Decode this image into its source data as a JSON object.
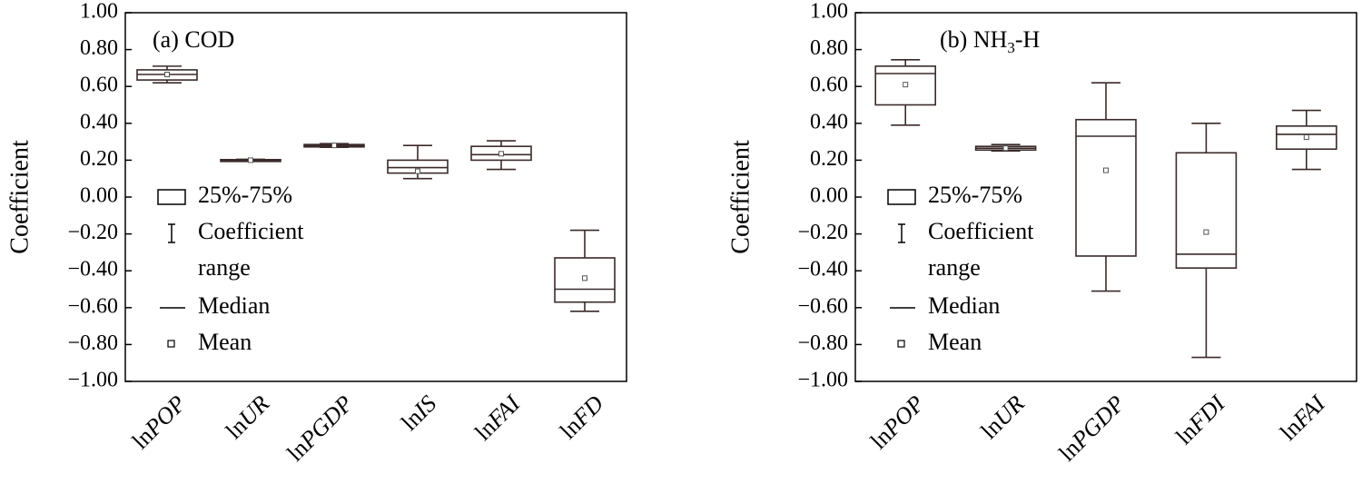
{
  "chart_data": [
    {
      "type": "box",
      "panel_label": "(a) COD",
      "ylabel": "Coefficient",
      "ylim": [
        -1.0,
        1.0
      ],
      "yticks": [
        "1.00",
        "0.80",
        "0.60",
        "0.40",
        "0.20",
        "0.00",
        "−0.20",
        "−0.40",
        "−0.60",
        "−0.80",
        "−1.00"
      ],
      "categories": [
        {
          "prefix": "ln",
          "italic": "POP"
        },
        {
          "prefix": "ln",
          "italic": "UR"
        },
        {
          "prefix": "ln",
          "italic": "PGDP"
        },
        {
          "prefix": "ln",
          "italic": "IS"
        },
        {
          "prefix": "ln",
          "italic": "FAI"
        },
        {
          "prefix": "ln",
          "italic": "FD"
        }
      ],
      "boxes": [
        {
          "min": 0.62,
          "q1": 0.635,
          "median": 0.665,
          "q3": 0.69,
          "max": 0.71,
          "mean": 0.665
        },
        {
          "min": 0.195,
          "q1": 0.197,
          "median": 0.2,
          "q3": 0.203,
          "max": 0.205,
          "mean": 0.2
        },
        {
          "min": 0.27,
          "q1": 0.272,
          "median": 0.28,
          "q3": 0.285,
          "max": 0.29,
          "mean": 0.28
        },
        {
          "min": 0.1,
          "q1": 0.13,
          "median": 0.16,
          "q3": 0.2,
          "max": 0.28,
          "mean": 0.14
        },
        {
          "min": 0.15,
          "q1": 0.2,
          "median": 0.23,
          "q3": 0.275,
          "max": 0.305,
          "mean": 0.235
        },
        {
          "min": -0.62,
          "q1": -0.57,
          "median": -0.5,
          "q3": -0.33,
          "max": -0.18,
          "mean": -0.44
        }
      ],
      "legend": {
        "box": "25%-75%",
        "range_line1": "Coefficient",
        "range_line2": "range",
        "median": "Median",
        "mean": "Mean"
      }
    },
    {
      "type": "box",
      "panel_label_main": "(b) NH",
      "panel_label_sub": "3",
      "panel_label_tail": "-H",
      "ylabel": "Coefficient",
      "ylim": [
        -1.0,
        1.0
      ],
      "yticks": [
        "1.00",
        "0.80",
        "0.60",
        "0.40",
        "0.20",
        "0.00",
        "−0.20",
        "−0.40",
        "−0.60",
        "−0.80",
        "−1.00"
      ],
      "categories": [
        {
          "prefix": "ln",
          "italic": "POP"
        },
        {
          "prefix": "ln",
          "italic": "UR"
        },
        {
          "prefix": "ln",
          "italic": "PGDP"
        },
        {
          "prefix": "ln",
          "italic": "FDI"
        },
        {
          "prefix": "ln",
          "italic": "FAI"
        }
      ],
      "boxes": [
        {
          "min": 0.39,
          "q1": 0.5,
          "median": 0.67,
          "q3": 0.71,
          "max": 0.745,
          "mean": 0.61
        },
        {
          "min": 0.25,
          "q1": 0.255,
          "median": 0.265,
          "q3": 0.275,
          "max": 0.285,
          "mean": 0.265
        },
        {
          "min": -0.51,
          "q1": -0.32,
          "median": 0.33,
          "q3": 0.42,
          "max": 0.62,
          "mean": 0.145
        },
        {
          "min": -0.87,
          "q1": -0.385,
          "median": -0.31,
          "q3": 0.24,
          "max": 0.4,
          "mean": -0.19
        },
        {
          "min": 0.15,
          "q1": 0.26,
          "median": 0.34,
          "q3": 0.385,
          "max": 0.47,
          "mean": 0.325
        }
      ],
      "legend": {
        "box": "25%-75%",
        "range_line1": "Coefficient",
        "range_line2": "range",
        "median": "Median",
        "mean": "Mean"
      }
    }
  ]
}
